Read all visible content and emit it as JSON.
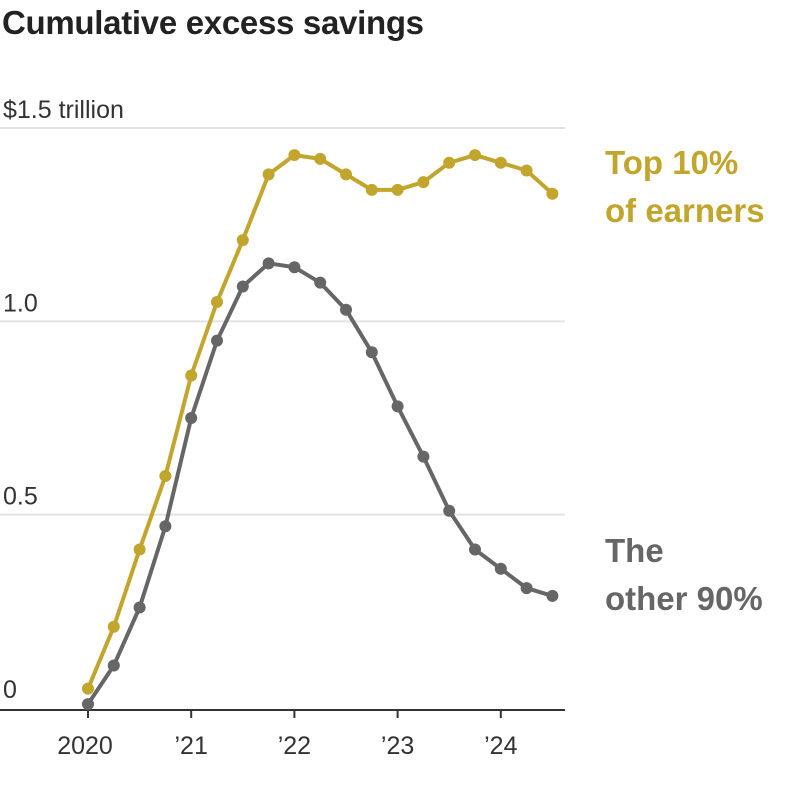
{
  "chart_data": {
    "type": "line",
    "title": "Cumulative excess savings",
    "y_unit_label": "$1.5 trillion",
    "y_ticks": [
      {
        "value": 0,
        "label": "0"
      },
      {
        "value": 0.5,
        "label": "0.5"
      },
      {
        "value": 1.0,
        "label": "1.0"
      },
      {
        "value": 1.5,
        "label": "$1.5 trillion"
      }
    ],
    "x_ticks": [
      {
        "value": 2020.0,
        "label": "2020"
      },
      {
        "value": 2021.0,
        "label": "’21"
      },
      {
        "value": 2022.0,
        "label": "’22"
      },
      {
        "value": 2023.0,
        "label": "’23"
      },
      {
        "value": 2024.0,
        "label": "’24"
      }
    ],
    "xlim": [
      2019.2,
      2024.6
    ],
    "ylim": [
      0,
      1.5
    ],
    "grid": true,
    "series": [
      {
        "name": "Top 10% of earners",
        "label_lines": [
          "Top 10%",
          "of earners"
        ],
        "color": "#c2a52c",
        "x": [
          2020.0,
          2020.25,
          2020.5,
          2020.75,
          2021.0,
          2021.25,
          2021.5,
          2021.75,
          2022.0,
          2022.25,
          2022.5,
          2022.75,
          2023.0,
          2023.25,
          2023.5,
          2023.75,
          2024.0,
          2024.25,
          2024.5
        ],
        "y": [
          0.05,
          0.21,
          0.41,
          0.6,
          0.86,
          1.05,
          1.21,
          1.38,
          1.43,
          1.42,
          1.38,
          1.34,
          1.34,
          1.36,
          1.41,
          1.43,
          1.41,
          1.39,
          1.33
        ]
      },
      {
        "name": "The other 90%",
        "label_lines": [
          "The",
          "other 90%"
        ],
        "color": "#666666",
        "x": [
          2020.0,
          2020.25,
          2020.5,
          2020.75,
          2021.0,
          2021.25,
          2021.5,
          2021.75,
          2022.0,
          2022.25,
          2022.5,
          2022.75,
          2023.0,
          2023.25,
          2023.5,
          2023.75,
          2024.0,
          2024.25,
          2024.5
        ],
        "y": [
          0.01,
          0.11,
          0.26,
          0.47,
          0.75,
          0.95,
          1.09,
          1.15,
          1.14,
          1.1,
          1.03,
          0.92,
          0.78,
          0.65,
          0.51,
          0.41,
          0.36,
          0.31,
          0.29
        ]
      }
    ]
  }
}
